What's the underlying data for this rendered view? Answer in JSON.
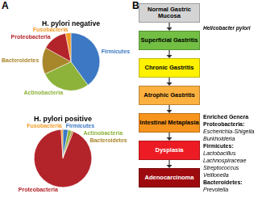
{
  "panel_labels": [
    "A",
    "B"
  ],
  "chart_data": [
    {
      "type": "pie",
      "title": "H. pylori negative",
      "categories": [
        "Firmicutes",
        "Actinobacteria",
        "Bacteroidetes",
        "Proteobacteria",
        "Fusobacteria"
      ],
      "values": [
        40,
        28,
        15,
        14,
        3
      ],
      "colors": [
        "#3c78c3",
        "#8db33a",
        "#a8862a",
        "#b3232a",
        "#f39c2b"
      ]
    },
    {
      "type": "pie",
      "title": "H. pylori positive",
      "categories": [
        "Firmicutes",
        "Actinobacteria",
        "Bacteroidetes",
        "Proteobacteria",
        "Fusobacteria"
      ],
      "values": [
        3,
        2,
        1,
        93,
        1
      ],
      "colors": [
        "#3c78c3",
        "#8db33a",
        "#a8862a",
        "#b3232a",
        "#f39c2b"
      ]
    }
  ],
  "diagram": {
    "nodes": [
      {
        "label": "Normal Gastric Mucosa",
        "color": "#d4d4d4"
      },
      {
        "label": "Superficial Gastritis",
        "color": "#72bf44"
      },
      {
        "label": "Chronic Gastritis",
        "color": "#fff200"
      },
      {
        "label": "Atrophic Gastritis",
        "color": "#fbb040"
      },
      {
        "label": "Intestinal Metaplasia",
        "color": "#f7941d"
      },
      {
        "label": "Dysplasia",
        "color": "#ed1c24"
      },
      {
        "label": "Adenocarcinoma",
        "color": "#9e0b0f"
      }
    ],
    "annotation": "Helicobacter pylori",
    "enriched": {
      "title": "Enriched Genera",
      "groups": [
        {
          "phylum": "Proteobacteria:",
          "genera": [
            "Escherichia-Shigella",
            "Burkholderia"
          ]
        },
        {
          "phylum": "Firmicutes:",
          "genera": [
            "Lactobacillus",
            "Lachnospiraceae",
            "Streptococcus",
            "Veillonella"
          ]
        },
        {
          "phylum": "Bacteroidetes:",
          "genera": [
            "Prevotella"
          ]
        }
      ]
    }
  }
}
